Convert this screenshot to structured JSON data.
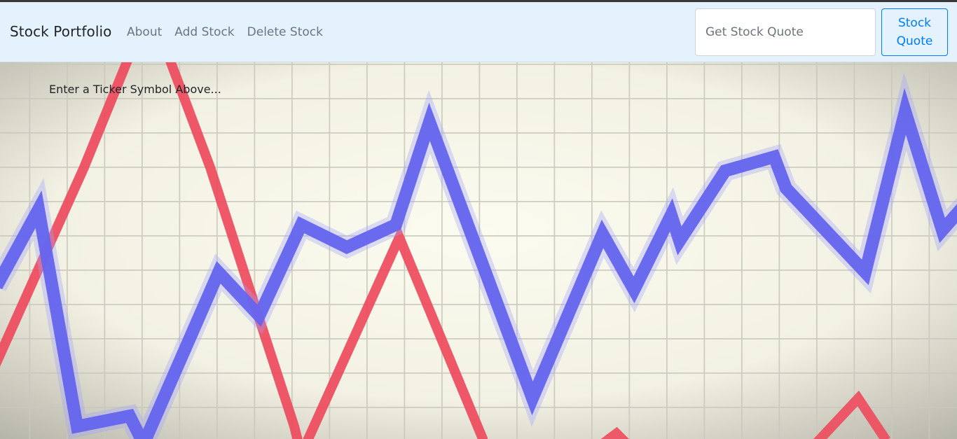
{
  "navbar": {
    "brand": "Stock Portfolio",
    "links": [
      "About",
      "Add Stock",
      "Delete Stock"
    ],
    "search_placeholder": "Get Stock Quote",
    "search_button": "Stock Quote"
  },
  "main": {
    "prompt": "Enter a Ticker Symbol Above..."
  },
  "colors": {
    "navbar_bg": "#e3f2fd",
    "primary": "#007bff",
    "background_red_line": "#ee4a5c",
    "background_blue_line": "#6666ee"
  },
  "icons": {
    "background": "stock-chart-background-image"
  }
}
